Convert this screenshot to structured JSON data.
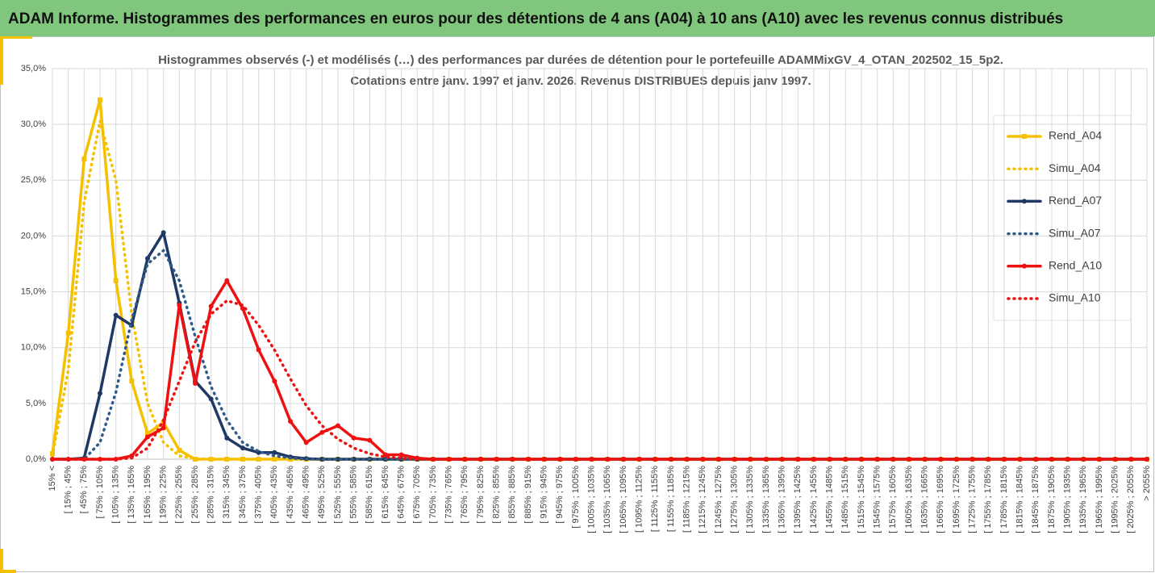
{
  "header": {
    "title": "ADAM Informe. Histogrammes des performances en euros pour des détentions de 4 ans (A04) à 10 ans (A10) avec les revenus connus distribués"
  },
  "chart_data": {
    "type": "line",
    "title": "Histogrammes observés (-) et modélisés (…) des performances par durées de détention pour le portefeuille ADAMMixGV_4_OTAN_202502_15_5p2.",
    "subtitle": "Cotations entre janv. 1997 et janv. 2026. Revenus DISTRIBUES depuis janv 1997.",
    "categories": [
      "15% <",
      "[ 15% ; 45%",
      "[ 45% ; 75%",
      "[ 75% ; 105%",
      "[ 105% ; 135%",
      "[ 135% ; 165%",
      "[ 165% ; 195%",
      "[ 195% ; 225%",
      "[ 225% ; 255%",
      "[ 255% ; 285%",
      "[ 285% ; 315%",
      "[ 315% ; 345%",
      "[ 345% ; 375%",
      "[ 375% ; 405%",
      "[ 405% ; 435%",
      "[ 435% ; 465%",
      "[ 465% ; 495%",
      "[ 495% ; 525%",
      "[ 525% ; 555%",
      "[ 555% ; 585%",
      "[ 585% ; 615%",
      "[ 615% ; 645%",
      "[ 645% ; 675%",
      "[ 675% ; 705%",
      "[ 705% ; 735%",
      "[ 735% ; 765%",
      "[ 765% ; 795%",
      "[ 795% ; 825%",
      "[ 825% ; 855%",
      "[ 855% ; 885%",
      "[ 885% ; 915%",
      "[ 915% ; 945%",
      "[ 945% ; 975%",
      "[ 975% ; 1005%",
      "[ 1005% ; 1035%",
      "[ 1035% ; 1065%",
      "[ 1065% ; 1095%",
      "[ 1095% ; 1125%",
      "[ 1125% ; 1155%",
      "[ 1155% ; 1185%",
      "[ 1185% ; 1215%",
      "[ 1215% ; 1245%",
      "[ 1245% ; 1275%",
      "[ 1275% ; 1305%",
      "[ 1305% ; 1335%",
      "[ 1335% ; 1365%",
      "[ 1365% ; 1395%",
      "[ 1395% ; 1425%",
      "[ 1425% ; 1455%",
      "[ 1455% ; 1485%",
      "[ 1485% ; 1515%",
      "[ 1515% ; 1545%",
      "[ 1545% ; 1575%",
      "[ 1575% ; 1605%",
      "[ 1605% ; 1635%",
      "[ 1635% ; 1665%",
      "[ 1665% ; 1695%",
      "[ 1695% ; 1725%",
      "[ 1725% ; 1755%",
      "[ 1755% ; 1785%",
      "[ 1785% ; 1815%",
      "[ 1815% ; 1845%",
      "[ 1845% ; 1875%",
      "[ 1875% ; 1905%",
      "[ 1905% ; 1935%",
      "[ 1935% ; 1965%",
      "[ 1965% ; 1995%",
      "[ 1995% ; 2025%",
      "[ 2025% ; 2055%",
      "> 2055%"
    ],
    "series": [
      {
        "name": "Rend_A04",
        "color": "#f5c000",
        "dash": false,
        "marker": "square",
        "values": [
          0.5,
          11.3,
          26.9,
          32.2,
          16,
          7,
          2.3,
          3.3,
          0.8,
          0,
          0,
          0,
          0,
          0,
          0,
          0,
          0,
          0,
          0,
          0,
          0,
          0,
          0,
          0,
          0,
          0,
          0,
          0,
          0,
          0,
          0,
          0,
          0,
          0,
          0,
          0,
          0,
          0,
          0,
          0,
          0,
          0,
          0,
          0,
          0,
          0,
          0,
          0,
          0,
          0,
          0,
          0,
          0,
          0,
          0,
          0,
          0,
          0,
          0,
          0,
          0,
          0,
          0,
          0,
          0,
          0,
          0,
          0,
          0,
          0
        ]
      },
      {
        "name": "Simu_A04",
        "color": "#f5c000",
        "dash": true,
        "marker": "none",
        "values": [
          0.3,
          8,
          23,
          30.3,
          25,
          13,
          5,
          1.5,
          0.3,
          0.05,
          0,
          0,
          0,
          0,
          0,
          0,
          0,
          0,
          0,
          0,
          0,
          0,
          0,
          0,
          0,
          0,
          0,
          0,
          0,
          0,
          0,
          0,
          0,
          0,
          0,
          0,
          0,
          0,
          0,
          0,
          0,
          0,
          0,
          0,
          0,
          0,
          0,
          0,
          0,
          0,
          0,
          0,
          0,
          0,
          0,
          0,
          0,
          0,
          0,
          0,
          0,
          0,
          0,
          0,
          0,
          0,
          0,
          0,
          0,
          0
        ]
      },
      {
        "name": "Rend_A07",
        "color": "#1f3864",
        "dash": false,
        "marker": "circle",
        "values": [
          0,
          0,
          0.1,
          5.9,
          12.9,
          12,
          18,
          20.3,
          14,
          7,
          5.4,
          1.9,
          1,
          0.6,
          0.6,
          0.2,
          0.05,
          0,
          0,
          0,
          0,
          0,
          0,
          0,
          0,
          0,
          0,
          0,
          0,
          0,
          0,
          0,
          0,
          0,
          0,
          0,
          0,
          0,
          0,
          0,
          0,
          0,
          0,
          0,
          0,
          0,
          0,
          0,
          0,
          0,
          0,
          0,
          0,
          0,
          0,
          0,
          0,
          0,
          0,
          0,
          0,
          0,
          0,
          0,
          0,
          0,
          0,
          0,
          0,
          0
        ]
      },
      {
        "name": "Simu_A07",
        "color": "#2e5b8a",
        "dash": true,
        "marker": "none",
        "values": [
          0,
          0,
          0,
          1.5,
          6,
          12.5,
          17.5,
          18.7,
          16,
          11,
          6.5,
          3.5,
          1.5,
          0.7,
          0.3,
          0.1,
          0,
          0,
          0,
          0,
          0,
          0,
          0,
          0,
          0,
          0,
          0,
          0,
          0,
          0,
          0,
          0,
          0,
          0,
          0,
          0,
          0,
          0,
          0,
          0,
          0,
          0,
          0,
          0,
          0,
          0,
          0,
          0,
          0,
          0,
          0,
          0,
          0,
          0,
          0,
          0,
          0,
          0,
          0,
          0,
          0,
          0,
          0,
          0,
          0,
          0,
          0,
          0,
          0,
          0
        ]
      },
      {
        "name": "Rend_A10",
        "color": "#ee1111",
        "dash": false,
        "marker": "circle",
        "values": [
          0,
          0,
          0,
          0,
          0,
          0.3,
          2,
          2.8,
          13.8,
          6.8,
          13.7,
          16,
          13.5,
          9.8,
          7,
          3.4,
          1.5,
          2.4,
          3,
          1.9,
          1.7,
          0.4,
          0.4,
          0.1,
          0,
          0,
          0,
          0,
          0,
          0,
          0,
          0,
          0,
          0,
          0,
          0,
          0,
          0,
          0,
          0,
          0,
          0,
          0,
          0,
          0,
          0,
          0,
          0,
          0,
          0,
          0,
          0,
          0,
          0,
          0,
          0,
          0,
          0,
          0,
          0,
          0,
          0,
          0,
          0,
          0,
          0,
          0,
          0,
          0,
          0
        ]
      },
      {
        "name": "Simu_A10",
        "color": "#ee1111",
        "dash": true,
        "marker": "none",
        "values": [
          0,
          0,
          0,
          0,
          0,
          0.1,
          1,
          3.5,
          7,
          10.5,
          13,
          14.2,
          13.8,
          12,
          9.8,
          7.2,
          4.8,
          3,
          1.8,
          1,
          0.5,
          0.2,
          0.1,
          0,
          0,
          0,
          0,
          0,
          0,
          0,
          0,
          0,
          0,
          0,
          0,
          0,
          0,
          0,
          0,
          0,
          0,
          0,
          0,
          0,
          0,
          0,
          0,
          0,
          0,
          0,
          0,
          0,
          0,
          0,
          0,
          0,
          0,
          0,
          0,
          0,
          0,
          0,
          0,
          0,
          0,
          0,
          0,
          0,
          0,
          0
        ]
      }
    ],
    "ylim": [
      0,
      35
    ],
    "yticks": [
      {
        "value": 0,
        "label": "0,0%"
      },
      {
        "value": 5,
        "label": "5,0%"
      },
      {
        "value": 10,
        "label": "10,0%"
      },
      {
        "value": 15,
        "label": "15,0%"
      },
      {
        "value": 20,
        "label": "20,0%"
      },
      {
        "value": 25,
        "label": "25,0%"
      },
      {
        "value": 30,
        "label": "30,0%"
      },
      {
        "value": 35,
        "label": "35,0%"
      }
    ],
    "grid": true,
    "legend": "right"
  }
}
